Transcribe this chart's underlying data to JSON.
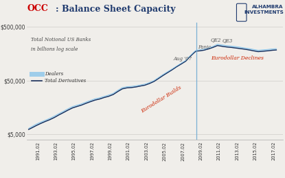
{
  "title_occ": "OCC",
  "title_rest": ": Balance Sheet Capacity",
  "subtitle1": "Total Notional US Banks",
  "subtitle2": "in billions log scale",
  "legend_dealers": "Dealers",
  "legend_total": "Total Derivatives",
  "xlabel_ticks": [
    "1991.02",
    "1993.02",
    "1995.02",
    "1997.02",
    "1999.02",
    "2001.02",
    "2003.02",
    "2005.02",
    "2007.02",
    "2009.02",
    "2011.02",
    "2013.02",
    "2015.02",
    "2017.02"
  ],
  "yticks": [
    5000,
    50000,
    500000
  ],
  "ytick_labels": [
    "$5,000",
    "$50,000",
    "$500,000"
  ],
  "ylim_log": [
    4000,
    600000
  ],
  "annotation_eurodollar_builds": "Eurodollar Builds",
  "annotation_eurodollar_declines": "Eurodollar Declines",
  "annotation_aug07": "Aug '07",
  "annotation_panic": "Panic",
  "annotation_qe2": "QE2",
  "annotation_qe3": "QE3",
  "vline_x": 2008.67,
  "color_dealers": "#7bbfea",
  "color_total": "#1a2e5a",
  "color_occ_red": "#cc0000",
  "color_title_blue": "#1f3a6e",
  "color_annotation_red": "#cc2200",
  "color_annotation_dark": "#555555",
  "color_vline": "#7aafd4",
  "bg_color": "#f0eeea",
  "grid_color": "#d0cdc8",
  "years": [
    1990.17,
    1990.5,
    1991.0,
    1991.5,
    1992.0,
    1992.5,
    1993.0,
    1993.5,
    1994.0,
    1994.5,
    1995.0,
    1995.5,
    1996.0,
    1996.5,
    1997.0,
    1997.5,
    1998.0,
    1998.5,
    1999.0,
    1999.5,
    2000.0,
    2000.5,
    2001.0,
    2001.5,
    2002.0,
    2002.5,
    2003.0,
    2003.5,
    2004.0,
    2004.5,
    2005.0,
    2005.5,
    2006.0,
    2006.5,
    2007.0,
    2007.5,
    2008.0,
    2008.5,
    2008.67,
    2009.0,
    2009.5,
    2010.0,
    2010.5,
    2011.0,
    2011.5,
    2012.0,
    2012.5,
    2013.0,
    2013.5,
    2014.0,
    2014.5,
    2015.0,
    2015.5,
    2016.0,
    2016.5,
    2017.0,
    2017.5
  ],
  "dealers_values": [
    6500,
    7000,
    7800,
    8500,
    9200,
    10000,
    11000,
    12200,
    13500,
    15000,
    16500,
    17500,
    18500,
    20000,
    21500,
    23000,
    24000,
    25500,
    27000,
    29000,
    33000,
    37000,
    38500,
    39000,
    40000,
    41500,
    43000,
    46000,
    50000,
    57000,
    65000,
    73000,
    82000,
    93000,
    105000,
    118000,
    145000,
    175000,
    182000,
    185000,
    190000,
    200000,
    215000,
    235000,
    228000,
    222000,
    218000,
    213000,
    207000,
    201000,
    195000,
    188000,
    182000,
    185000,
    188000,
    192000,
    195000
  ],
  "total_values": [
    6200,
    6600,
    7300,
    8000,
    8700,
    9400,
    10300,
    11500,
    12700,
    14100,
    15500,
    16500,
    17500,
    18900,
    20300,
    21700,
    22700,
    24200,
    25500,
    27500,
    31200,
    35000,
    36500,
    37000,
    38000,
    39500,
    41000,
    44000,
    48000,
    54500,
    62000,
    70000,
    79000,
    90000,
    101000,
    114000,
    140000,
    168000,
    175000,
    177000,
    182000,
    192000,
    205000,
    222000,
    215000,
    209000,
    205000,
    200000,
    195000,
    190000,
    184000,
    177000,
    171000,
    174000,
    177000,
    181000,
    184000
  ]
}
